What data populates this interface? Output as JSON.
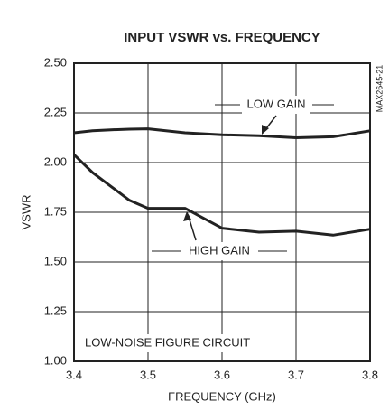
{
  "chart_data": {
    "type": "line",
    "title": "INPUT VSWR vs. FREQUENCY",
    "xlabel": "FREQUENCY (GHz)",
    "ylabel": "VSWR",
    "x": [
      3.4,
      3.425,
      3.45,
      3.475,
      3.5,
      3.55,
      3.575,
      3.6,
      3.65,
      3.7,
      3.75,
      3.8
    ],
    "series": [
      {
        "name": "LOW GAIN",
        "color": "#222222",
        "values": [
          2.15,
          2.16,
          2.165,
          2.168,
          2.17,
          2.15,
          2.145,
          2.14,
          2.135,
          2.125,
          2.13,
          2.16
        ]
      },
      {
        "name": "HIGH GAIN",
        "color": "#222222",
        "values": [
          2.04,
          1.95,
          1.88,
          1.81,
          1.77,
          1.77,
          1.72,
          1.67,
          1.65,
          1.655,
          1.635,
          1.665
        ]
      }
    ],
    "xlim": [
      3.4,
      3.8
    ],
    "xticks": [
      3.4,
      3.5,
      3.6,
      3.7,
      3.8
    ],
    "ylim": [
      1,
      2.5
    ],
    "yticks": [
      {
        "value": 1,
        "label": "1.00"
      },
      {
        "value": 1.25,
        "label": "1.25"
      },
      {
        "value": 1.5,
        "label": "1.50"
      },
      {
        "value": 1.75,
        "label": "1.75"
      },
      {
        "value": 2,
        "label": "2.00"
      },
      {
        "value": 2.25,
        "label": "2.25"
      },
      {
        "value": 2.5,
        "label": "2.50"
      }
    ],
    "grid": true,
    "annotations": [
      "LOW-NOISE FIGURE CIRCUIT",
      "MAX2645-21"
    ]
  }
}
